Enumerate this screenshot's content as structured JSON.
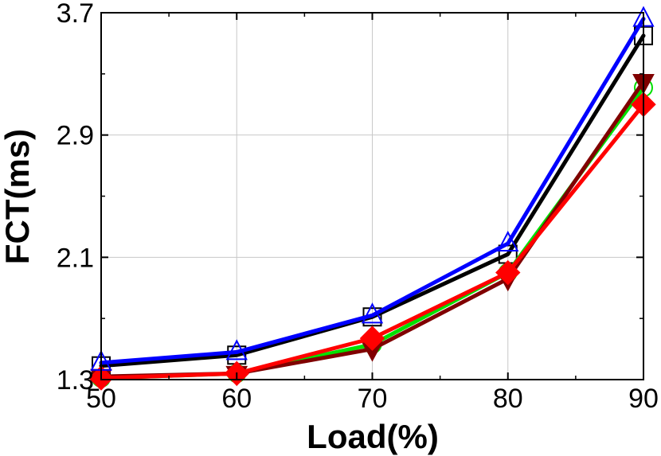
{
  "chart_data": {
    "type": "line",
    "xlabel": "Load(%)",
    "ylabel": "FCT(ms)",
    "x": [
      50,
      60,
      70,
      80,
      90
    ],
    "xlim": [
      50,
      90
    ],
    "ylim": [
      1.3,
      3.7
    ],
    "xticks": [
      "50",
      "60",
      "70",
      "80",
      "90"
    ],
    "yticks": [
      "1.3",
      "2.1",
      "2.9",
      "3.7"
    ],
    "grid": true,
    "series": [
      {
        "values": [
          1.39,
          1.46,
          1.71,
          2.12,
          3.55
        ],
        "color": "#000000",
        "marker": "square"
      },
      {
        "values": [
          1.31,
          1.34,
          1.53,
          2.0,
          3.21
        ],
        "color": "#00e000",
        "marker": "circle"
      },
      {
        "values": [
          1.32,
          1.34,
          1.5,
          1.96,
          3.25
        ],
        "color": "#800000",
        "marker": "triangle-down"
      },
      {
        "values": [
          1.31,
          1.34,
          1.57,
          2.0,
          3.1
        ],
        "color": "#ff0000",
        "marker": "diamond"
      },
      {
        "values": [
          1.41,
          1.48,
          1.72,
          2.19,
          3.66
        ],
        "color": "#0000ff",
        "marker": "triangle-up"
      }
    ]
  }
}
